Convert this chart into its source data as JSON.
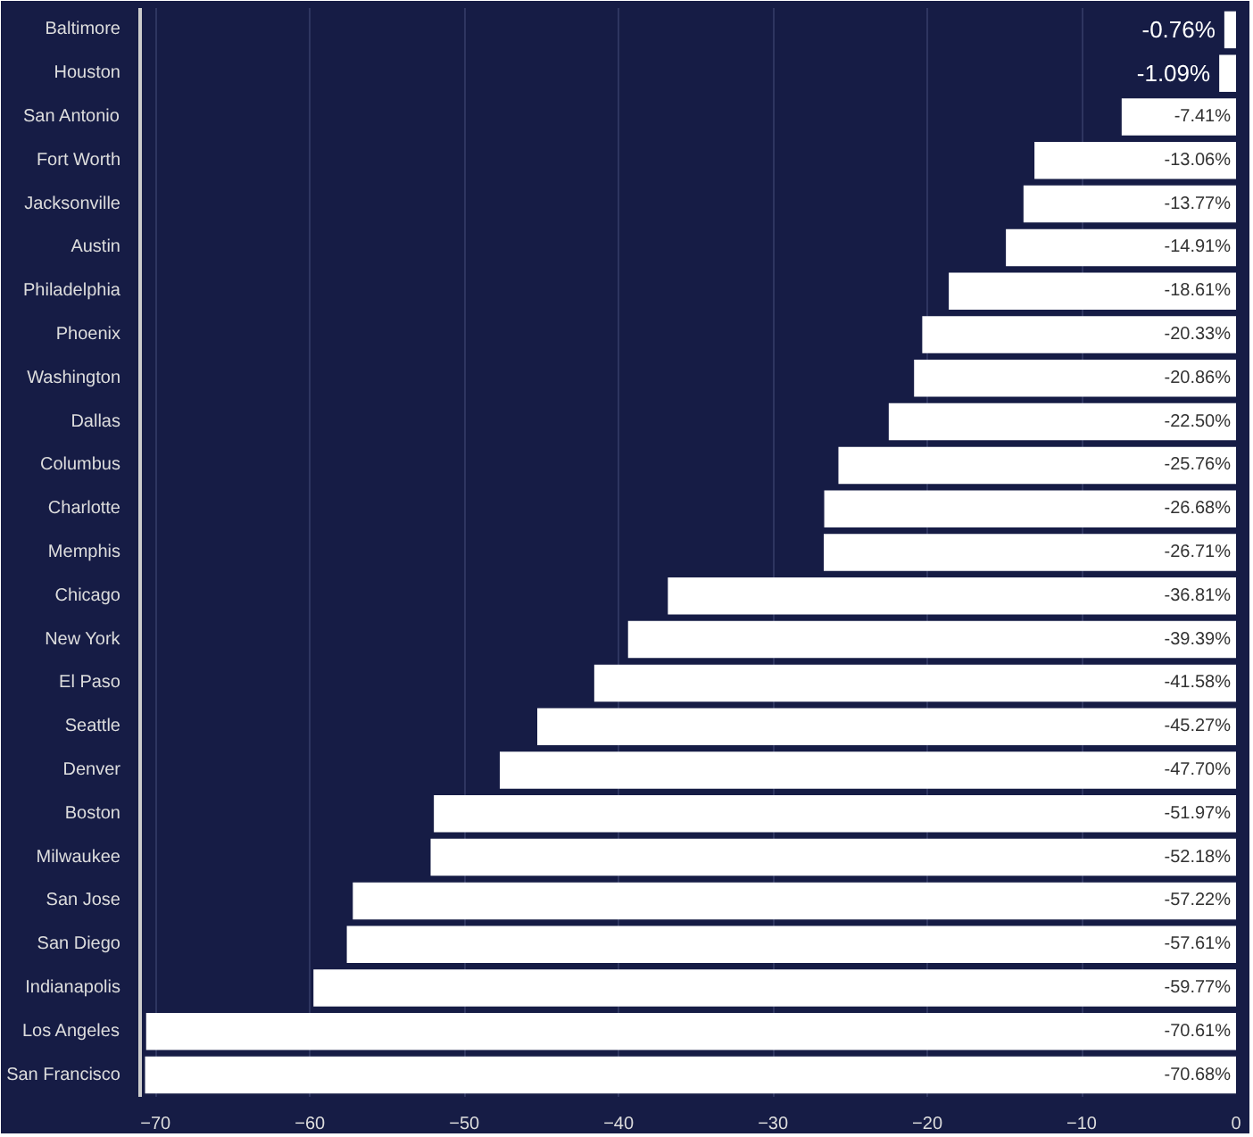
{
  "chart_data": {
    "type": "bar",
    "orientation": "horizontal",
    "categories": [
      "Baltimore",
      "Houston",
      "San Antonio",
      "Fort Worth",
      "Jacksonville",
      "Austin",
      "Philadelphia",
      "Phoenix",
      "Washington",
      "Dallas",
      "Columbus",
      "Charlotte",
      "Memphis",
      "Chicago",
      "New York",
      "El Paso",
      "Seattle",
      "Denver",
      "Boston",
      "Milwaukee",
      "San Jose",
      "San Diego",
      "Indianapolis",
      "Los Angeles",
      "San Francisco"
    ],
    "values": [
      -0.76,
      -1.09,
      -7.41,
      -13.06,
      -13.77,
      -14.91,
      -18.61,
      -20.33,
      -20.86,
      -22.5,
      -25.76,
      -26.68,
      -26.71,
      -36.81,
      -39.39,
      -41.58,
      -45.27,
      -47.7,
      -51.97,
      -52.18,
      -57.22,
      -57.61,
      -59.77,
      -70.61,
      -70.68
    ],
    "value_labels": [
      "-0.76%",
      "-1.09%",
      "-7.41%",
      "-13.06%",
      "-13.77%",
      "-14.91%",
      "-18.61%",
      "-20.33%",
      "-20.86%",
      "-22.50%",
      "-25.76%",
      "-26.68%",
      "-26.71%",
      "-36.81%",
      "-39.39%",
      "-41.58%",
      "-45.27%",
      "-47.70%",
      "-51.97%",
      "-52.18%",
      "-57.22%",
      "-57.61%",
      "-59.77%",
      "-70.61%",
      "-70.68%"
    ],
    "color": "#ffffff",
    "xlim": [
      -71,
      0
    ],
    "xticks": [
      -70,
      -60,
      -50,
      -40,
      -30,
      -20,
      -10,
      0
    ],
    "grid": "x"
  }
}
